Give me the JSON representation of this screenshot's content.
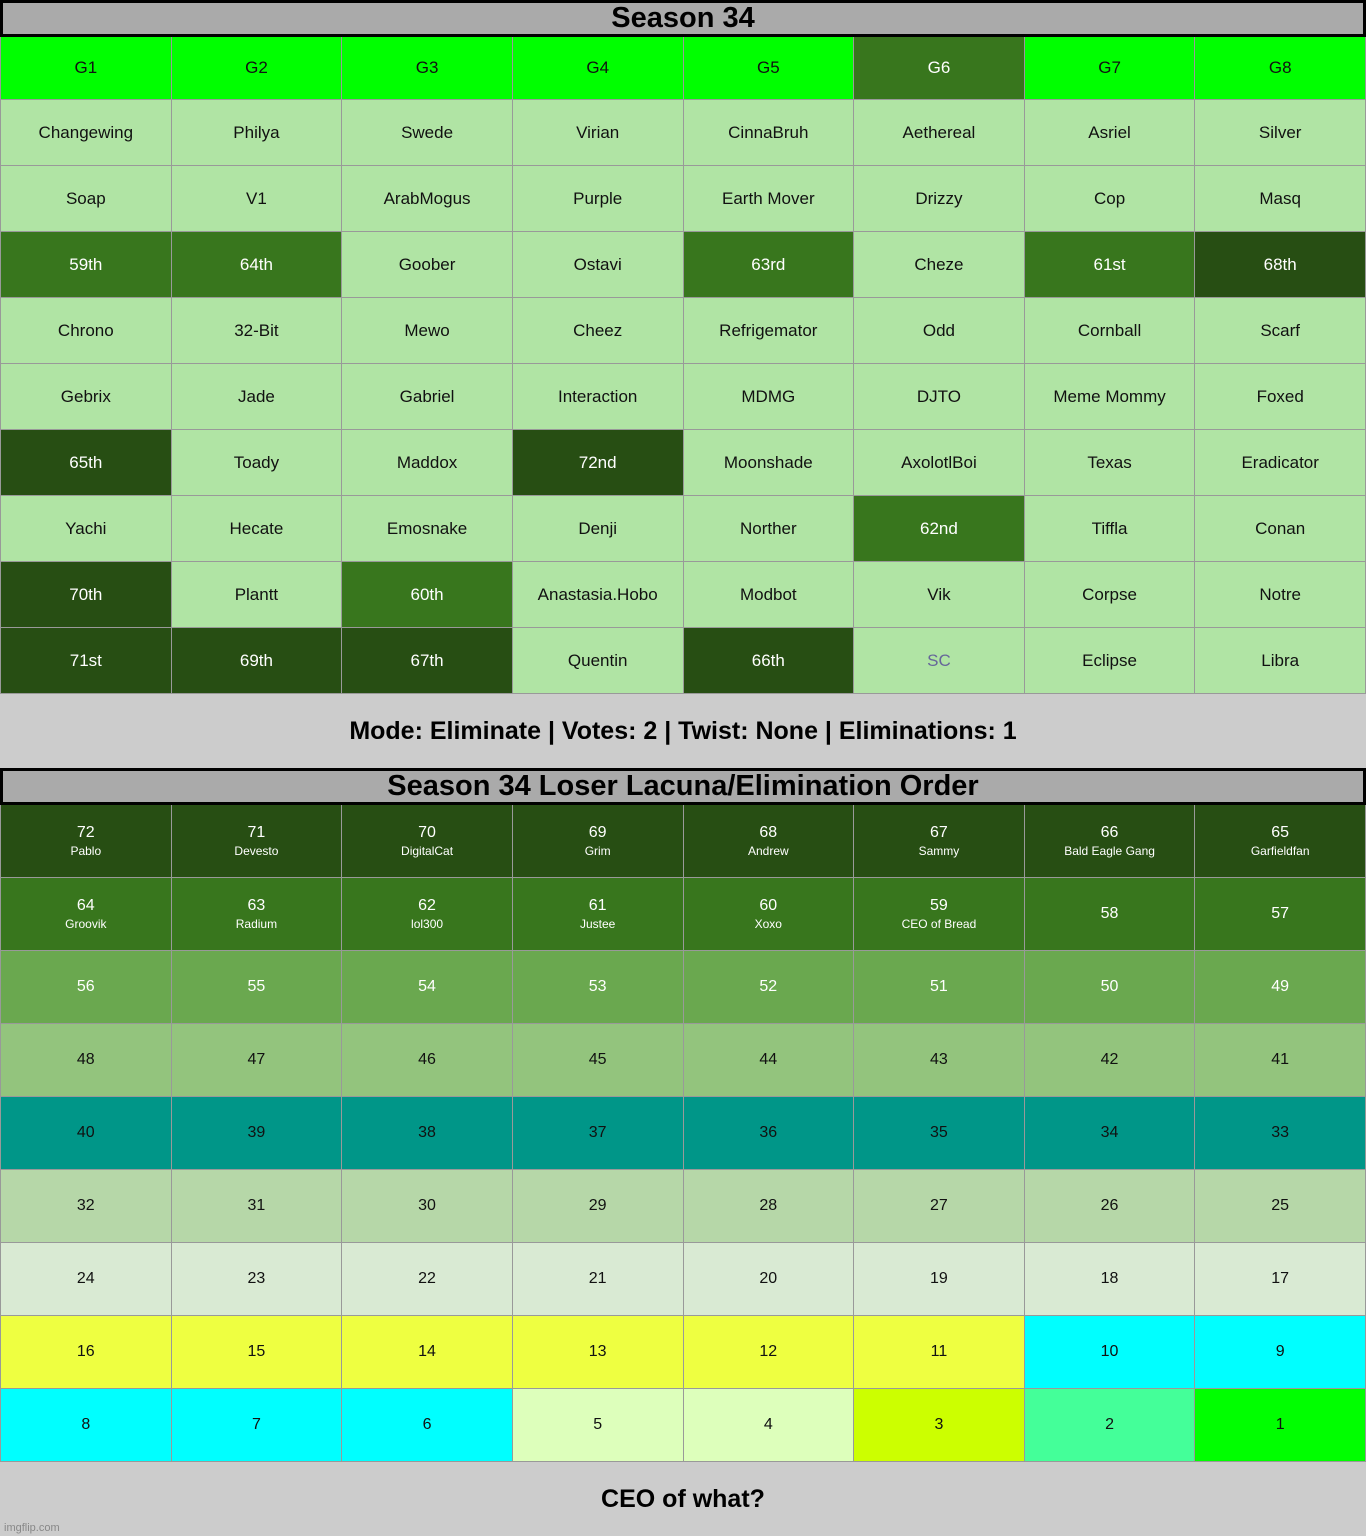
{
  "colors": {
    "light": "#b0e4a4",
    "mid": "#38761d",
    "dark": "#274e13",
    "lime": "#00ff00",
    "sc_text": "#666699"
  },
  "top_title": "Season 34",
  "groups": [
    {
      "label": "G1",
      "color": "lime"
    },
    {
      "label": "G2",
      "color": "lime"
    },
    {
      "label": "G3",
      "color": "lime"
    },
    {
      "label": "G4",
      "color": "lime"
    },
    {
      "label": "G5",
      "color": "lime"
    },
    {
      "label": "G6",
      "color": "mid"
    },
    {
      "label": "G7",
      "color": "lime"
    },
    {
      "label": "G8",
      "color": "lime"
    }
  ],
  "top_rows": [
    [
      [
        "Changewing",
        "light"
      ],
      [
        "Philya",
        "light"
      ],
      [
        "Swede",
        "light"
      ],
      [
        "Virian",
        "light"
      ],
      [
        "CinnaBruh",
        "light"
      ],
      [
        "Aethereal",
        "light"
      ],
      [
        "Asriel",
        "light"
      ],
      [
        "Silver",
        "light"
      ]
    ],
    [
      [
        "Soap",
        "light"
      ],
      [
        "V1",
        "light"
      ],
      [
        "ArabMogus",
        "light"
      ],
      [
        "Purple",
        "light"
      ],
      [
        "Earth Mover",
        "light"
      ],
      [
        "Drizzy",
        "light"
      ],
      [
        "Cop",
        "light"
      ],
      [
        "Masq",
        "light"
      ]
    ],
    [
      [
        "59th",
        "mid"
      ],
      [
        "64th",
        "mid"
      ],
      [
        "Goober",
        "light"
      ],
      [
        "Ostavi",
        "light"
      ],
      [
        "63rd",
        "mid"
      ],
      [
        "Cheze",
        "light"
      ],
      [
        "61st",
        "mid"
      ],
      [
        "68th",
        "dark"
      ]
    ],
    [
      [
        "Chrono",
        "light"
      ],
      [
        "32-Bit",
        "light"
      ],
      [
        "Mewo",
        "light"
      ],
      [
        "Cheez",
        "light"
      ],
      [
        "Refrigemator",
        "light"
      ],
      [
        "Odd",
        "light"
      ],
      [
        "Cornball",
        "light"
      ],
      [
        "Scarf",
        "light"
      ]
    ],
    [
      [
        "Gebrix",
        "light"
      ],
      [
        "Jade",
        "light"
      ],
      [
        "Gabriel",
        "light"
      ],
      [
        "Interaction",
        "light"
      ],
      [
        "MDMG",
        "light"
      ],
      [
        "DJTO",
        "light"
      ],
      [
        "Meme Mommy",
        "light"
      ],
      [
        "Foxed",
        "light"
      ]
    ],
    [
      [
        "65th",
        "dark"
      ],
      [
        "Toady",
        "light"
      ],
      [
        "Maddox",
        "light"
      ],
      [
        "72nd",
        "dark"
      ],
      [
        "Moonshade",
        "light"
      ],
      [
        "AxolotlBoi",
        "light"
      ],
      [
        "Texas",
        "light"
      ],
      [
        "Eradicator",
        "light"
      ]
    ],
    [
      [
        "Yachi",
        "light"
      ],
      [
        "Hecate",
        "light"
      ],
      [
        "Emosnake",
        "light"
      ],
      [
        "Denji",
        "light"
      ],
      [
        "Norther",
        "light"
      ],
      [
        "62nd",
        "mid"
      ],
      [
        "Tiffla",
        "light"
      ],
      [
        "Conan",
        "light"
      ]
    ],
    [
      [
        "70th",
        "dark"
      ],
      [
        "Plantt",
        "light"
      ],
      [
        "60th",
        "mid"
      ],
      [
        "Anastasia.Hobo",
        "light"
      ],
      [
        "Modbot",
        "light"
      ],
      [
        "Vik",
        "light"
      ],
      [
        "Corpse",
        "light"
      ],
      [
        "Notre",
        "light"
      ]
    ],
    [
      [
        "71st",
        "dark"
      ],
      [
        "69th",
        "dark"
      ],
      [
        "67th",
        "dark"
      ],
      [
        "Quentin",
        "light"
      ],
      [
        "66th",
        "dark"
      ],
      [
        "SC",
        "light"
      ],
      [
        "Eclipse",
        "light"
      ],
      [
        "Libra",
        "light"
      ]
    ]
  ],
  "mode_bar": "Mode: Eliminate | Votes: 2 | Twist: None | Eliminations: 1",
  "bottom_title": "Season 34 Loser Lacuna/Elimination Order",
  "row_colors": [
    "#274e13",
    "#38761d",
    "#6aa84f",
    "#93c47d",
    "#009688",
    "#b6d7a8",
    "#d9ead3",
    "#eeff41",
    "#00ffff"
  ],
  "bottom_rows": [
    [
      [
        "72",
        "Pablo"
      ],
      [
        "71",
        "Devesto"
      ],
      [
        "70",
        "DigitalCat"
      ],
      [
        "69",
        "Grim"
      ],
      [
        "68",
        "Andrew"
      ],
      [
        "67",
        "Sammy"
      ],
      [
        "66",
        "Bald Eagle Gang"
      ],
      [
        "65",
        "Garfieldfan"
      ]
    ],
    [
      [
        "64",
        "Groovik"
      ],
      [
        "63",
        "Radium"
      ],
      [
        "62",
        "lol300"
      ],
      [
        "61",
        "Justee"
      ],
      [
        "60",
        "Xoxo"
      ],
      [
        "59",
        "CEO of Bread"
      ],
      [
        "58",
        ""
      ],
      [
        "57",
        ""
      ]
    ],
    [
      [
        "56",
        ""
      ],
      [
        "55",
        ""
      ],
      [
        "54",
        ""
      ],
      [
        "53",
        ""
      ],
      [
        "52",
        ""
      ],
      [
        "51",
        ""
      ],
      [
        "50",
        ""
      ],
      [
        "49",
        ""
      ]
    ],
    [
      [
        "48",
        ""
      ],
      [
        "47",
        ""
      ],
      [
        "46",
        ""
      ],
      [
        "45",
        ""
      ],
      [
        "44",
        ""
      ],
      [
        "43",
        ""
      ],
      [
        "42",
        ""
      ],
      [
        "41",
        ""
      ]
    ],
    [
      [
        "40",
        ""
      ],
      [
        "39",
        ""
      ],
      [
        "38",
        ""
      ],
      [
        "37",
        ""
      ],
      [
        "36",
        ""
      ],
      [
        "35",
        ""
      ],
      [
        "34",
        ""
      ],
      [
        "33",
        ""
      ]
    ],
    [
      [
        "32",
        ""
      ],
      [
        "31",
        ""
      ],
      [
        "30",
        ""
      ],
      [
        "29",
        ""
      ],
      [
        "28",
        ""
      ],
      [
        "27",
        ""
      ],
      [
        "26",
        ""
      ],
      [
        "25",
        ""
      ]
    ],
    [
      [
        "24",
        ""
      ],
      [
        "23",
        ""
      ],
      [
        "22",
        ""
      ],
      [
        "21",
        ""
      ],
      [
        "20",
        ""
      ],
      [
        "19",
        ""
      ],
      [
        "18",
        ""
      ],
      [
        "17",
        ""
      ]
    ],
    [
      [
        "16",
        ""
      ],
      [
        "15",
        ""
      ],
      [
        "14",
        ""
      ],
      [
        "13",
        ""
      ],
      [
        "12",
        ""
      ],
      [
        "11",
        ""
      ],
      [
        "10",
        "",
        "#00ffff"
      ],
      [
        "9",
        "",
        "#00ffff"
      ]
    ],
    [
      [
        "8",
        ""
      ],
      [
        "7",
        ""
      ],
      [
        "6",
        ""
      ],
      [
        "5",
        "",
        "#ddffbb"
      ],
      [
        "4",
        "",
        "#ddffbb"
      ],
      [
        "3",
        "",
        "#ccff00"
      ],
      [
        "2",
        "",
        "#44ff99"
      ],
      [
        "1",
        "",
        "#00ff00"
      ]
    ]
  ],
  "footer": "CEO of what?",
  "watermark": "imgflip.com"
}
